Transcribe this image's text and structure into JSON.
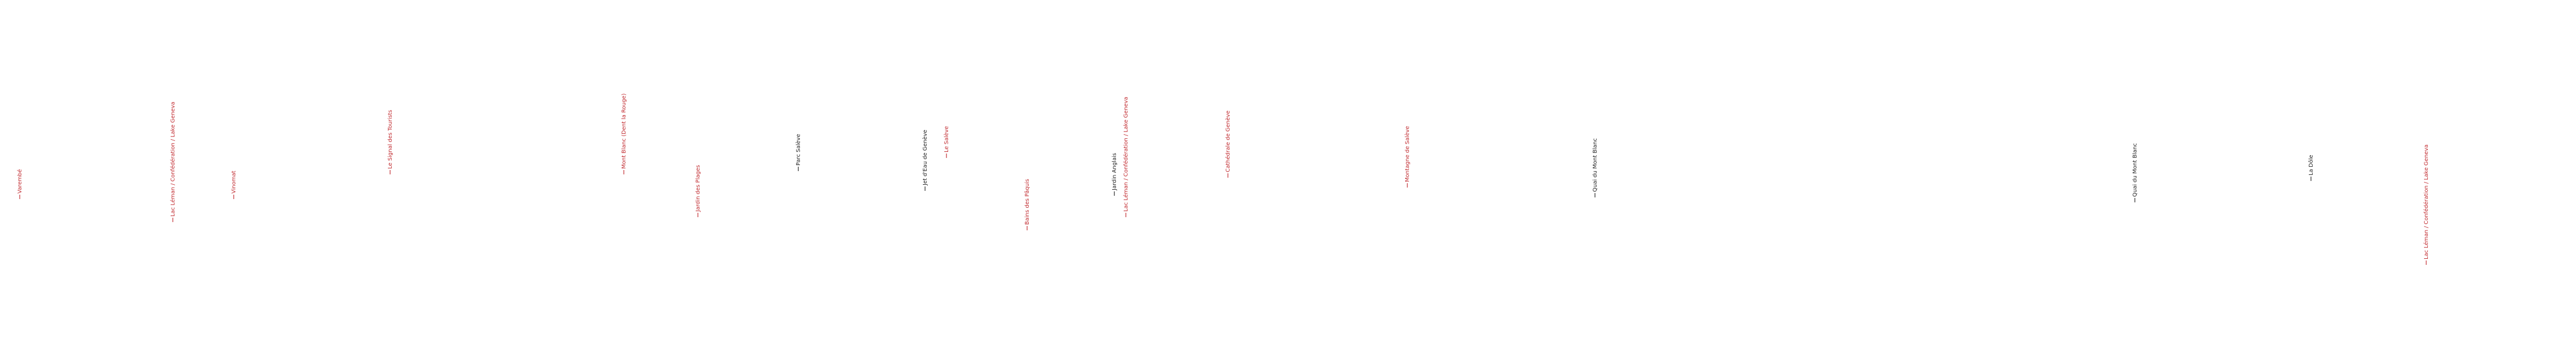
{
  "labels": [
    {
      "text": "Varembé",
      "color": "#c0282d"
    },
    {
      "text": "Lac Léman / Confédération / Lake Geneva",
      "color": "#c0282d"
    },
    {
      "text": "Vinomat",
      "color": "#c0282d"
    },
    {
      "text": "Le Signal des Tourists",
      "color": "#c0282d"
    },
    {
      "text": "Mont Blanc (Dent la Rouge)",
      "color": "#c0282d"
    },
    {
      "text": "Jardin des Plages",
      "color": "#c0282d"
    },
    {
      "text": "Parc Salève",
      "color": "#222222"
    },
    {
      "text": "Jet d'Eau de Genève",
      "color": "#222222"
    },
    {
      "text": "Le Salève",
      "color": "#c0282d"
    },
    {
      "text": "Bains des Pâquis",
      "color": "#c0282d"
    },
    {
      "text": "Jardin Anglais",
      "color": "#222222"
    },
    {
      "text": "Lac Léman / Confédération / Lake Geneva",
      "color": "#c0282d"
    },
    {
      "text": "Cathédrale de Genève",
      "color": "#c0282d"
    },
    {
      "text": "Montagne de Salève",
      "color": "#c0282d"
    },
    {
      "text": "Quai du Mont Blanc",
      "color": "#222222"
    },
    {
      "text": "Quai du Mont Blanc",
      "color": "#222222"
    },
    {
      "text": "La Dôle",
      "color": "#222222"
    },
    {
      "text": "Lac Léman / Confédération / Lake Geneva",
      "color": "#c0282d"
    }
  ]
}
